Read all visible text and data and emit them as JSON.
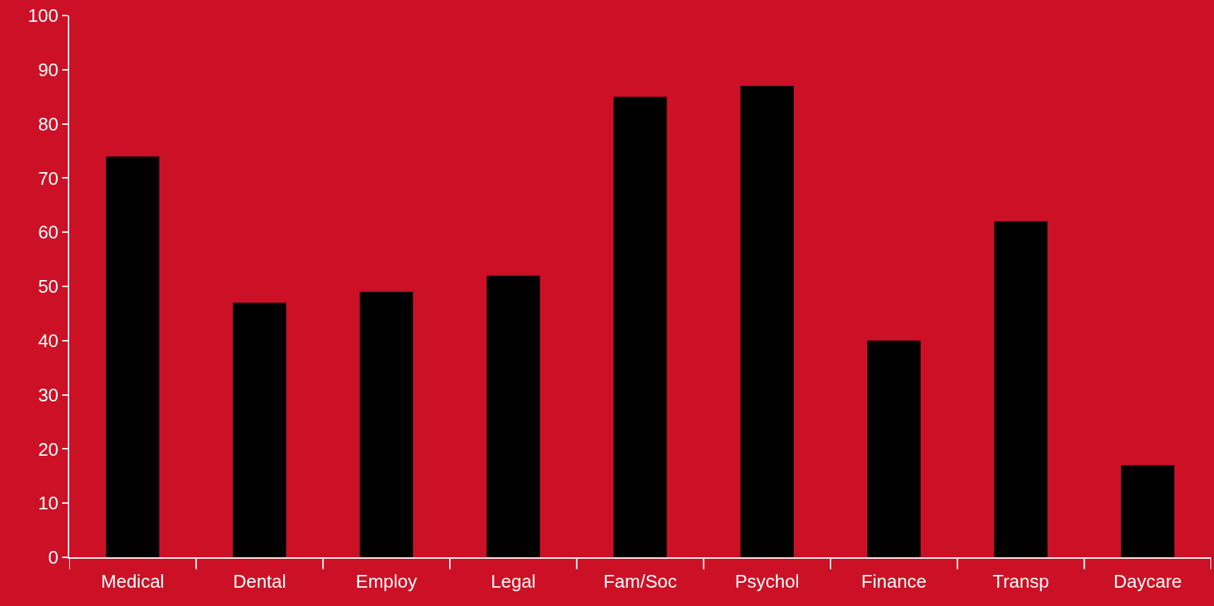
{
  "chart_data": {
    "type": "bar",
    "categories": [
      "Medical",
      "Dental",
      "Employ",
      "Legal",
      "Fam/Soc",
      "Psychol",
      "Finance",
      "Transp",
      "Daycare"
    ],
    "values": [
      74,
      47,
      49,
      52,
      85,
      87,
      40,
      62,
      17
    ],
    "color": "#000000",
    "ylim": [
      0,
      100
    ],
    "yticks": [
      0,
      10,
      20,
      30,
      40,
      50,
      60,
      70,
      80,
      90,
      100
    ],
    "grid": false
  }
}
